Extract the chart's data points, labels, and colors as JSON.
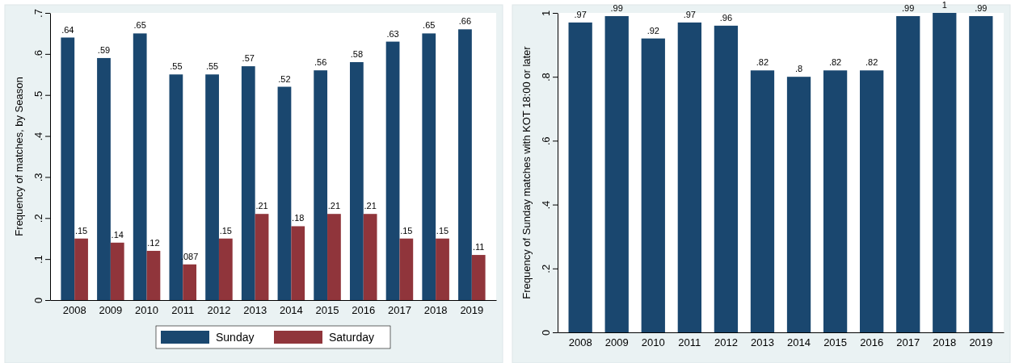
{
  "chart_data": [
    {
      "type": "bar",
      "ylabel": "Frequency of matches, by Season",
      "categories": [
        "2008",
        "2009",
        "2010",
        "2011",
        "2012",
        "2013",
        "2014",
        "2015",
        "2016",
        "2017",
        "2018",
        "2019"
      ],
      "series": [
        {
          "name": "Sunday",
          "color": "#1a476f",
          "values": [
            0.64,
            0.59,
            0.65,
            0.55,
            0.55,
            0.57,
            0.52,
            0.56,
            0.58,
            0.63,
            0.65,
            0.66
          ],
          "value_labels": [
            ".64",
            ".59",
            ".65",
            ".55",
            ".55",
            ".57",
            ".52",
            ".56",
            ".58",
            ".63",
            ".65",
            ".66"
          ]
        },
        {
          "name": "Saturday",
          "color": "#90353b",
          "values": [
            0.15,
            0.14,
            0.12,
            0.087,
            0.15,
            0.21,
            0.18,
            0.21,
            0.21,
            0.15,
            0.15,
            0.11
          ],
          "value_labels": [
            ".15",
            ".14",
            ".12",
            ".087",
            ".15",
            ".21",
            ".18",
            ".21",
            ".21",
            ".15",
            ".15",
            ".11"
          ]
        }
      ],
      "ylim": [
        0,
        0.7
      ],
      "yticks": [
        {
          "value": 0,
          "label": "0"
        },
        {
          "value": 0.1,
          "label": ".1"
        },
        {
          "value": 0.2,
          "label": ".2"
        },
        {
          "value": 0.3,
          "label": ".3"
        },
        {
          "value": 0.4,
          "label": ".4"
        },
        {
          "value": 0.5,
          "label": ".5"
        },
        {
          "value": 0.6,
          "label": ".6"
        },
        {
          "value": 0.7,
          "label": ".7"
        }
      ],
      "legend": "bottom"
    },
    {
      "type": "bar",
      "ylabel": "Frequency of Sunday matches with KOT 18:00 or later",
      "categories": [
        "2008",
        "2009",
        "2010",
        "2011",
        "2012",
        "2013",
        "2014",
        "2015",
        "2016",
        "2017",
        "2018",
        "2019"
      ],
      "series": [
        {
          "color": "#1a476f",
          "values": [
            0.97,
            0.99,
            0.92,
            0.97,
            0.96,
            0.82,
            0.8,
            0.82,
            0.82,
            0.99,
            1,
            0.99
          ],
          "value_labels": [
            ".97",
            ".99",
            ".92",
            ".97",
            ".96",
            ".82",
            ".8",
            ".82",
            ".82",
            ".99",
            "1",
            ".99"
          ]
        }
      ],
      "ylim": [
        0,
        1
      ],
      "yticks": [
        {
          "value": 0,
          "label": "0"
        },
        {
          "value": 0.2,
          "label": ".2"
        },
        {
          "value": 0.4,
          "label": ".4"
        },
        {
          "value": 0.6,
          "label": ".6"
        },
        {
          "value": 0.8,
          "label": ".8"
        },
        {
          "value": 1,
          "label": "1"
        }
      ]
    }
  ]
}
